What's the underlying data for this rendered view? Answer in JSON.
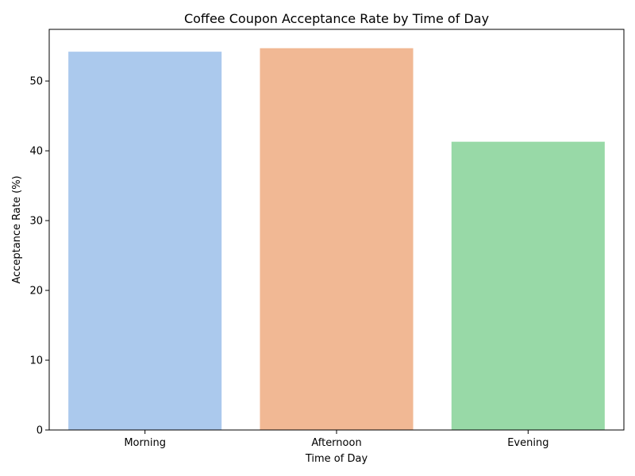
{
  "chart_data": {
    "type": "bar",
    "title": "Coffee Coupon Acceptance Rate by Time of Day",
    "xlabel": "Time of Day",
    "ylabel": "Acceptance Rate (%)",
    "categories": [
      "Morning",
      "Afternoon",
      "Evening"
    ],
    "values": [
      54.2,
      54.7,
      41.3
    ],
    "colors": [
      "#abc9ed",
      "#f1b894",
      "#98d9a7"
    ],
    "ylim": [
      0,
      57.4
    ],
    "yticks": [
      0,
      10,
      20,
      30,
      40,
      50
    ],
    "grid": false,
    "legend": "none"
  }
}
